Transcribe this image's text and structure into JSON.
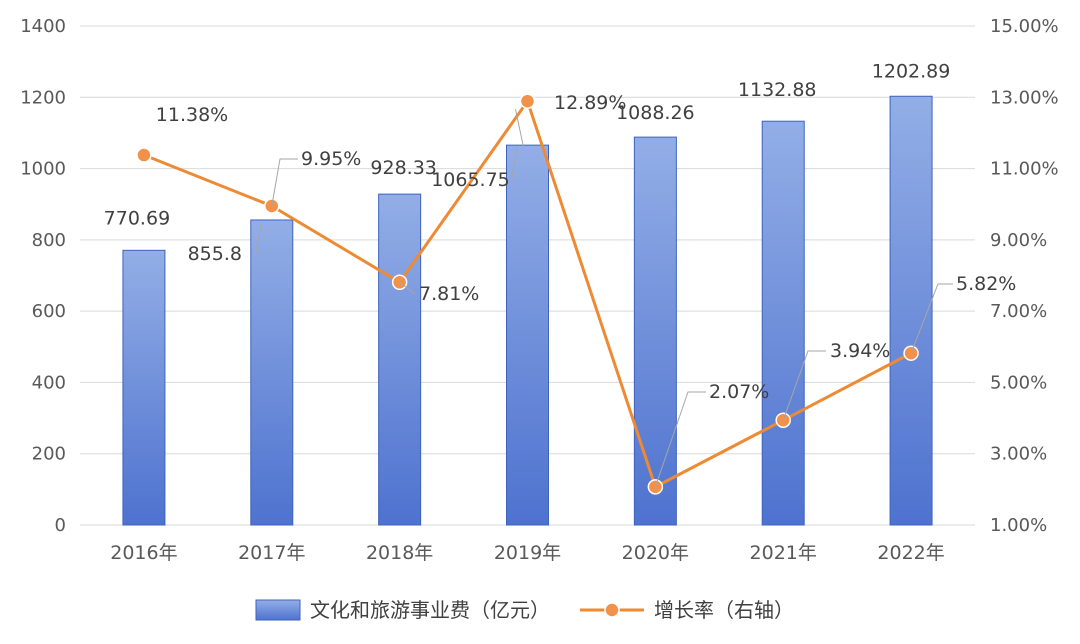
{
  "chart_data": {
    "type": "bar",
    "categories": [
      "2016年",
      "2017年",
      "2018年",
      "2019年",
      "2020年",
      "2021年",
      "2022年"
    ],
    "series": [
      {
        "name": "文化和旅游事业费（亿元）",
        "type": "bar",
        "axis": "left",
        "values": [
          770.69,
          855.8,
          928.33,
          1065.75,
          1088.26,
          1132.88,
          1202.89
        ],
        "labels": [
          "770.69",
          "855.8",
          "928.33",
          "1065.75",
          "1088.26",
          "1132.88",
          "1202.89"
        ]
      },
      {
        "name": "增长率（右轴）",
        "type": "line",
        "axis": "right",
        "values": [
          11.38,
          9.95,
          7.81,
          12.89,
          2.07,
          3.94,
          5.82
        ],
        "labels": [
          "11.38%",
          "9.95%",
          "7.81%",
          "12.89%",
          "2.07%",
          "3.94%",
          "5.82%"
        ]
      }
    ],
    "y_left": {
      "ylim": [
        0,
        1400
      ],
      "ticks": [
        "0",
        "200",
        "400",
        "600",
        "800",
        "1000",
        "1200",
        "1400"
      ]
    },
    "y_right": {
      "ylim": [
        1,
        15
      ],
      "ticks": [
        "1.00%",
        "3.00%",
        "5.00%",
        "7.00%",
        "9.00%",
        "11.00%",
        "13.00%",
        "15.00%"
      ]
    },
    "grid": true,
    "legend_position": "bottom",
    "colors": {
      "bar_top": "#93aee6",
      "bar_bottom": "#4e72cf",
      "bar_stroke": "#3f62c1",
      "line": "#ee8a33",
      "marker_fill": "#f2914a",
      "grid": "#d9d9d9",
      "leader": "#a6a6a6"
    }
  }
}
